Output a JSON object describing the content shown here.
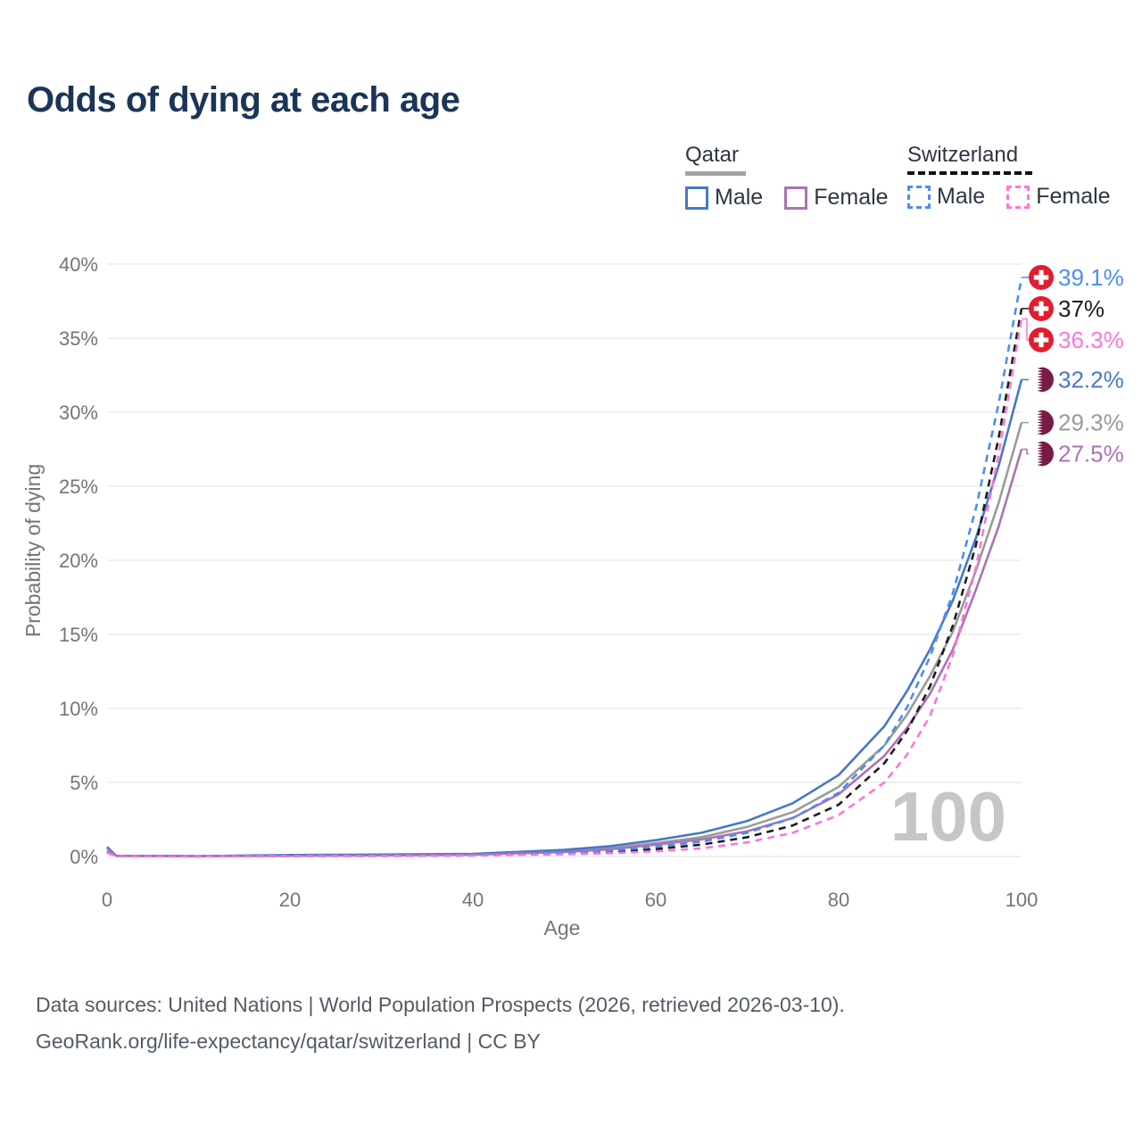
{
  "title": "Odds of dying at each age",
  "legend": {
    "qatar": {
      "label": "Qatar",
      "male": "Male",
      "female": "Female"
    },
    "switzerland": {
      "label": "Switzerland",
      "male": "Male",
      "female": "Female"
    }
  },
  "footer": {
    "line1": "Data sources: United Nations | World Population Prospects (2026, retrieved 2026-03-10).",
    "line2": "GeoRank.org/life-expectancy/qatar/switzerland | CC BY"
  },
  "chart_data": {
    "type": "line",
    "title": "Odds of dying at each age",
    "xlabel": "Age",
    "ylabel": "Probability of dying",
    "xlim": [
      0,
      100
    ],
    "ylim": [
      0,
      40
    ],
    "xticks": [
      0,
      20,
      40,
      60,
      80,
      100
    ],
    "yticks": [
      0,
      5,
      10,
      15,
      20,
      25,
      30,
      35,
      40
    ],
    "ytick_suffix": "%",
    "grid": true,
    "legend_position": "top-right",
    "hover_age_label": "100",
    "x": [
      0,
      1,
      10,
      20,
      30,
      40,
      50,
      55,
      60,
      65,
      70,
      75,
      80,
      85,
      87.5,
      90,
      92.5,
      95,
      97.5,
      100
    ],
    "series": [
      {
        "name": "Qatar Both sexes",
        "country": "qatar",
        "color": "#9a9a9a",
        "dash": false,
        "end_label": "29.3%",
        "end_value": 29.3,
        "values": [
          0.6,
          0.05,
          0.03,
          0.08,
          0.1,
          0.15,
          0.35,
          0.55,
          0.9,
          1.3,
          2.0,
          3.0,
          4.7,
          7.5,
          9.6,
          12.2,
          15.2,
          19.3,
          23.9,
          29.3
        ]
      },
      {
        "name": "Qatar Male",
        "country": "qatar",
        "color": "#4679c4",
        "dash": false,
        "end_label": "32.2%",
        "end_value": 32.2,
        "values": [
          0.65,
          0.05,
          0.03,
          0.1,
          0.13,
          0.18,
          0.45,
          0.7,
          1.1,
          1.6,
          2.4,
          3.6,
          5.5,
          8.8,
          11.2,
          14.0,
          17.3,
          21.5,
          26.4,
          32.2
        ]
      },
      {
        "name": "Qatar Female",
        "country": "qatar",
        "color": "#ad72b5",
        "dash": false,
        "end_label": "27.5%",
        "end_value": 27.5,
        "values": [
          0.55,
          0.04,
          0.02,
          0.05,
          0.07,
          0.12,
          0.3,
          0.48,
          0.8,
          1.15,
          1.7,
          2.6,
          4.2,
          6.8,
          8.7,
          11.0,
          14.0,
          18.0,
          22.3,
          27.5
        ]
      },
      {
        "name": "Switzerland Both sexes",
        "country": "switzerland",
        "color": "#1c1c1c",
        "dash": true,
        "end_label": "37%",
        "end_value": 37.0,
        "values": [
          0.3,
          0.03,
          0.01,
          0.04,
          0.05,
          0.08,
          0.2,
          0.3,
          0.5,
          0.8,
          1.3,
          2.1,
          3.5,
          6.3,
          8.5,
          11.5,
          15.6,
          21.0,
          28.3,
          37.0
        ]
      },
      {
        "name": "Switzerland Male",
        "country": "switzerland",
        "color": "#4b8ef5",
        "dash": true,
        "end_label": "39.1%",
        "end_value": 39.1,
        "values": [
          0.35,
          0.03,
          0.02,
          0.05,
          0.06,
          0.1,
          0.25,
          0.4,
          0.65,
          1.0,
          1.6,
          2.6,
          4.3,
          7.5,
          10.1,
          13.5,
          17.8,
          23.5,
          30.6,
          39.1
        ]
      },
      {
        "name": "Switzerland Female",
        "country": "switzerland",
        "color": "#ff74da",
        "dash": true,
        "end_label": "36.3%",
        "end_value": 36.3,
        "values": [
          0.25,
          0.02,
          0.01,
          0.02,
          0.03,
          0.06,
          0.15,
          0.22,
          0.35,
          0.55,
          0.95,
          1.6,
          2.8,
          5.0,
          6.9,
          9.5,
          13.6,
          19.5,
          27.2,
          36.3
        ]
      }
    ],
    "flag_colors": {
      "swiss_red": "#e11d2e",
      "qatar_maroon": "#791b47",
      "white": "#ffffff"
    },
    "style_colors": {
      "grid": "#e8e8e8",
      "axis_text": "#757575",
      "watermark": "#c6c6c6"
    }
  }
}
